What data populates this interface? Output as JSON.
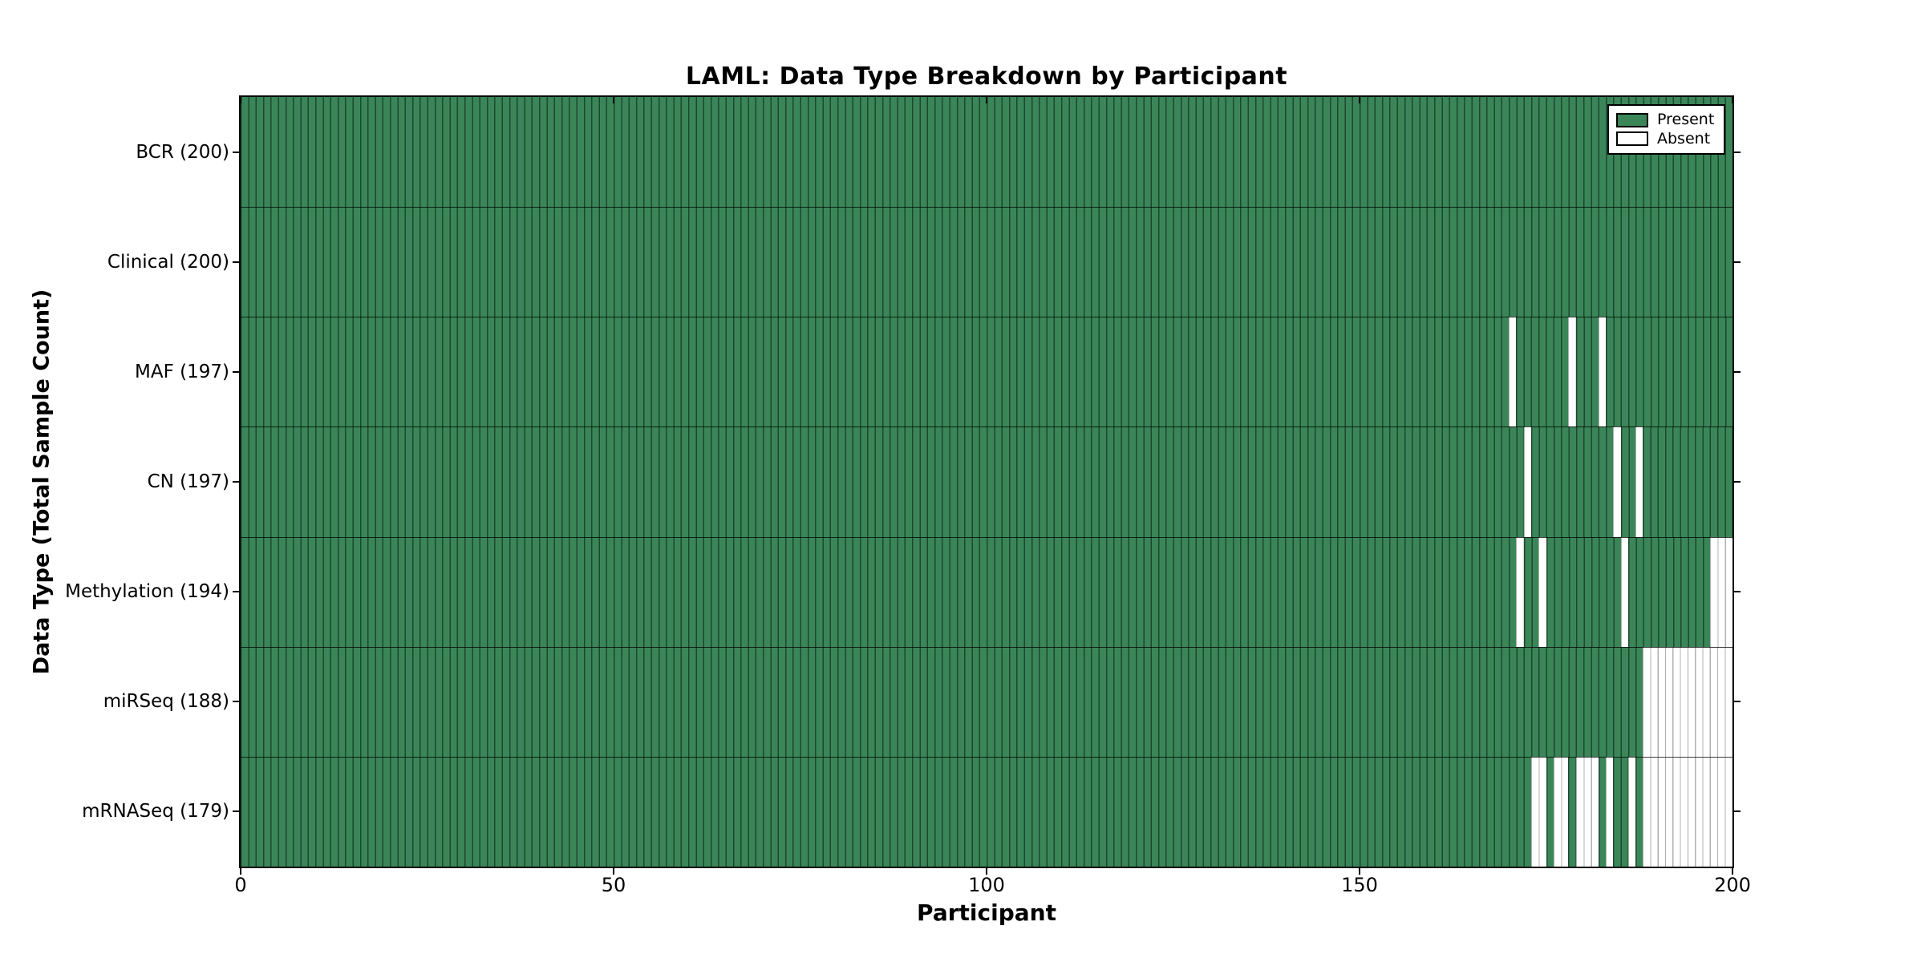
{
  "chart_data": {
    "type": "heatmap",
    "title": "LAML: Data Type Breakdown by Participant",
    "xlabel": "Participant",
    "ylabel": "Data Type (Total Sample Count)",
    "x_ticks": [
      0,
      50,
      100,
      150,
      200
    ],
    "x_range": [
      0,
      200
    ],
    "participants": 200,
    "grid": false,
    "legend_position": "top-right-inside",
    "legend": [
      {
        "label": "Present",
        "color": "#3A8658"
      },
      {
        "label": "Absent",
        "color": "#FFFFFF"
      }
    ],
    "colors": {
      "present": "#3A8658",
      "present_edge": "#1D4731",
      "absent": "#FFFFFF",
      "absent_edge": "#B0B0B0"
    },
    "rows": [
      {
        "label": "BCR (200)",
        "name": "BCR",
        "total": 200,
        "absent": []
      },
      {
        "label": "Clinical (200)",
        "name": "Clinical",
        "total": 200,
        "absent": []
      },
      {
        "label": "MAF (197)",
        "name": "MAF",
        "total": 197,
        "absent": [
          170,
          178,
          182
        ]
      },
      {
        "label": "CN (197)",
        "name": "CN",
        "total": 197,
        "absent": [
          172,
          184,
          187
        ]
      },
      {
        "label": "Methylation (194)",
        "name": "Methylation",
        "total": 194,
        "absent": [
          171,
          174,
          185,
          197,
          198,
          199
        ]
      },
      {
        "label": "miRSeq (188)",
        "name": "miRSeq",
        "total": 188,
        "absent": [
          188,
          189,
          190,
          191,
          192,
          193,
          194,
          195,
          196,
          197,
          198,
          199
        ]
      },
      {
        "label": "mRNASeq (179)",
        "name": "mRNASeq",
        "total": 179,
        "absent": [
          173,
          174,
          176,
          177,
          179,
          180,
          181,
          183,
          186,
          188,
          189,
          190,
          191,
          192,
          193,
          194,
          195,
          196,
          197,
          198,
          199
        ]
      }
    ]
  }
}
